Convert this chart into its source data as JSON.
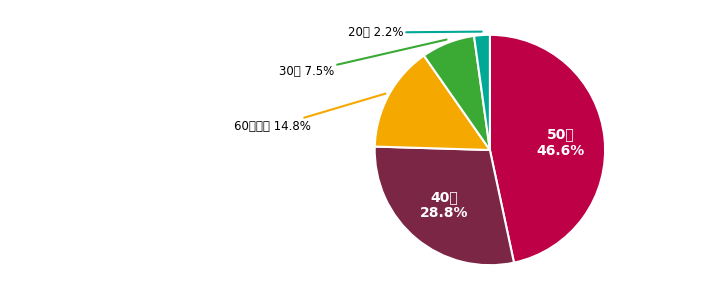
{
  "labels": [
    "50代",
    "40代",
    "60代以上",
    "30代",
    "20代"
  ],
  "values": [
    46.6,
    28.8,
    14.8,
    7.5,
    2.2
  ],
  "colors": [
    "#be0046",
    "#7b2645",
    "#f5a800",
    "#3aaa35",
    "#00a896"
  ],
  "startangle": 90,
  "figsize": [
    7.1,
    3.0
  ],
  "dpi": 100
}
